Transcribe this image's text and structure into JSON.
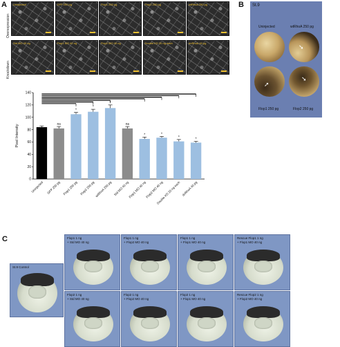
{
  "panels": {
    "a": "A",
    "b": "B",
    "c": "C"
  },
  "panel_a": {
    "row_labels": [
      "Overexpression",
      "Knockdown"
    ],
    "top_row_labels": [
      "Uninjected",
      "GFP 250 pg",
      "Flop1 250 pg",
      "Flop2 250 pg",
      "wtRhoA 250 pg"
    ],
    "bottom_row_labels": [
      "Std MO 40 ng",
      "Flop1 MO 40 ng",
      "Flop2 MO 40 ng",
      "Double KD 20 ng each",
      "dnRhoA 40 pg"
    ]
  },
  "panel_b": {
    "stage": "St.9",
    "labels": [
      "Uninjected",
      "wtRhoA 250 pg",
      "Flop1 250 pg",
      "Flop2 250 pg"
    ]
  },
  "panel_c": {
    "control_label": "St.9 Control",
    "tiles": [
      [
        "Flop1 1 ng",
        "+ Std MO 40 ng"
      ],
      [
        "Flop1 1 ng",
        "+ Flop2 MO 40 ng"
      ],
      [
        "Flop1 1 ng",
        "+ Flop1 MO 40 ng"
      ],
      [
        "Rescue Flop1 1 ng",
        "+ Flop1 MO 40 ng"
      ],
      [
        "Flop2 1 ng",
        "+ Std MO 40 ng"
      ],
      [
        "Flop2 1 ng",
        "+ Flop2 MO 40 ng"
      ],
      [
        "Flop2 1 ng",
        "+ Flop1 MO 40 ng"
      ],
      [
        "Rescue Flop2 1 ng",
        "+ Flop2 MO 40 ng"
      ]
    ]
  },
  "chart_data": {
    "type": "bar",
    "ylabel": "Pixel Intensity",
    "ylim": [
      0,
      140
    ],
    "yticks": [
      0,
      20,
      40,
      60,
      80,
      100,
      120,
      140
    ],
    "categories": [
      "Uninjected",
      "GFP 250 pg",
      "Flop1 250 pg",
      "Flop2 250 pg",
      "wtRhoA 250 pg",
      "Std MO 40 ng",
      "Flop1 MO 40 ng",
      "Flop2 MO 40 ng",
      "Double KD 20 ng each",
      "dnRhoA 40 pg"
    ],
    "values": [
      84,
      82,
      105,
      109,
      115,
      82,
      65,
      67,
      61,
      59
    ],
    "errors": [
      2,
      3,
      3,
      4,
      5,
      3,
      3,
      2,
      3,
      2
    ],
    "significance": [
      "",
      "ns",
      "*",
      "*",
      "*",
      "ns",
      "*",
      "*",
      "*",
      "*"
    ],
    "bar_colors": [
      "#000000",
      "#8c8c8c",
      "#9dbfe1",
      "#9dbfe1",
      "#9dbfe1",
      "#8c8c8c",
      "#9dbfe1",
      "#9dbfe1",
      "#9dbfe1",
      "#9dbfe1"
    ],
    "grid": false
  }
}
